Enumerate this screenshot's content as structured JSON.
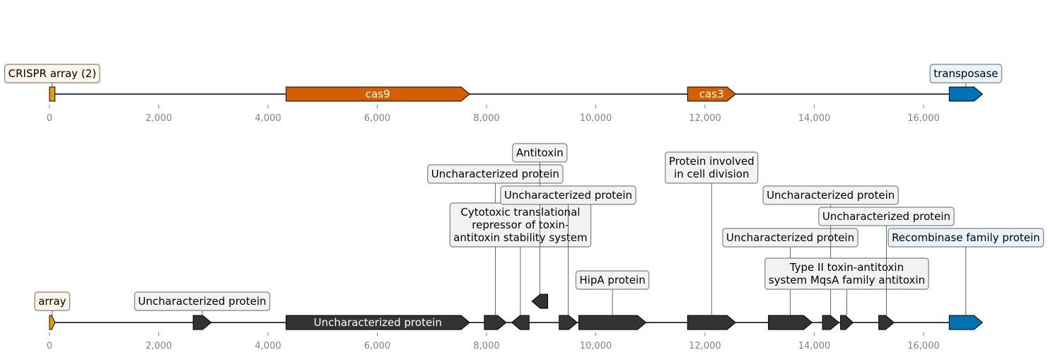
{
  "colors": {
    "axis_line": "#000000",
    "tick_label": "#808080",
    "tick_mark": "#808080",
    "label_box_border": "#808080",
    "label_leader": "#404040"
  },
  "tracks": [
    {
      "id": "top",
      "x_ticks": [
        0,
        2000,
        4000,
        6000,
        8000,
        10000,
        12000,
        14000,
        16000
      ],
      "x_tick_labels": [
        "0",
        "2,000",
        "4,000",
        "6,000",
        "8,000",
        "10,000",
        "12,000",
        "14,000",
        "16,000"
      ],
      "features": [
        {
          "start": 0,
          "end": 100,
          "strand": 0,
          "color": "#e69f00",
          "label": "CRISPR array (2)",
          "box_fill": "#fdf6e8",
          "label_level": 0,
          "inside_label": ""
        },
        {
          "start": 4330,
          "end": 7690,
          "strand": 1,
          "color": "#d55e00",
          "label": "",
          "inside_label": "cas9",
          "inside_color": "#ffffff"
        },
        {
          "start": 11680,
          "end": 12560,
          "strand": 1,
          "color": "#d55e00",
          "label": "",
          "inside_label": "cas3",
          "inside_color": "#ffffff"
        },
        {
          "start": 16470,
          "end": 17080,
          "strand": 1,
          "color": "#0072b2",
          "label": "transposase",
          "box_fill": "#e8f4fb",
          "label_level": 0,
          "inside_label": ""
        }
      ]
    },
    {
      "id": "bottom",
      "x_ticks": [
        0,
        2000,
        4000,
        6000,
        8000,
        10000,
        12000,
        14000,
        16000
      ],
      "x_tick_labels": [
        "0",
        "2,000",
        "4,000",
        "6,000",
        "8,000",
        "10,000",
        "12,000",
        "14,000",
        "16,000"
      ],
      "features": [
        {
          "start": 0,
          "end": 100,
          "strand": 1,
          "color": "#e69f00",
          "label": "array",
          "box_fill": "#fdf6e8",
          "label_level": 0
        },
        {
          "start": 2630,
          "end": 2960,
          "strand": 1,
          "color": "#333333",
          "label": "Uncharacterized protein",
          "box_fill": "#f2f2f2",
          "label_level": 0
        },
        {
          "start": 4330,
          "end": 7690,
          "strand": 1,
          "color": "#333333",
          "label": "",
          "inside_label": "Uncharacterized protein",
          "inside_color": "#ffffff"
        },
        {
          "start": 7960,
          "end": 8360,
          "strand": 1,
          "color": "#333333",
          "label": "Uncharacterized protein",
          "box_fill": "#f2f2f2",
          "label_level": 6
        },
        {
          "start": 8460,
          "end": 8780,
          "strand": -1,
          "color": "#333333",
          "label": "Cytotoxic translational\nrepressor of toxin-\nantitoxin stability system",
          "box_fill": "#f2f2f2",
          "label_level": 3
        },
        {
          "start": 8830,
          "end": 9120,
          "strand": -1,
          "color": "#333333",
          "label": "Antitoxin",
          "box_fill": "#f2f2f2",
          "label_level": 7,
          "row": 1
        },
        {
          "start": 9330,
          "end": 9660,
          "strand": 1,
          "color": "#333333",
          "label": "Uncharacterized protein",
          "box_fill": "#f2f2f2",
          "label_level": 5
        },
        {
          "start": 9690,
          "end": 10920,
          "strand": 1,
          "color": "#333333",
          "label": "HipA protein",
          "box_fill": "#f2f2f2",
          "label_level": 1
        },
        {
          "start": 11680,
          "end": 12560,
          "strand": 1,
          "color": "#333333",
          "label": "Protein involved\nin cell division",
          "box_fill": "#f2f2f2",
          "label_level": 6
        },
        {
          "start": 13160,
          "end": 13960,
          "strand": 1,
          "color": "#333333",
          "label": "Uncharacterized protein",
          "box_fill": "#f2f2f2",
          "label_level": 3
        },
        {
          "start": 14150,
          "end": 14450,
          "strand": 1,
          "color": "#333333",
          "label": "Uncharacterized protein",
          "box_fill": "#f2f2f2",
          "label_level": 5
        },
        {
          "start": 14480,
          "end": 14710,
          "strand": 1,
          "color": "#333333",
          "label": "Type II toxin-antitoxin\nsystem MqsA family antitoxin",
          "box_fill": "#f2f2f2",
          "label_level": 1
        },
        {
          "start": 15180,
          "end": 15460,
          "strand": 1,
          "color": "#333333",
          "label": "Uncharacterized protein",
          "box_fill": "#f2f2f2",
          "label_level": 4
        },
        {
          "start": 16470,
          "end": 17080,
          "strand": 1,
          "color": "#0072b2",
          "label": "Recombinase family protein",
          "box_fill": "#e8f4fb",
          "label_level": 3
        }
      ]
    }
  ]
}
